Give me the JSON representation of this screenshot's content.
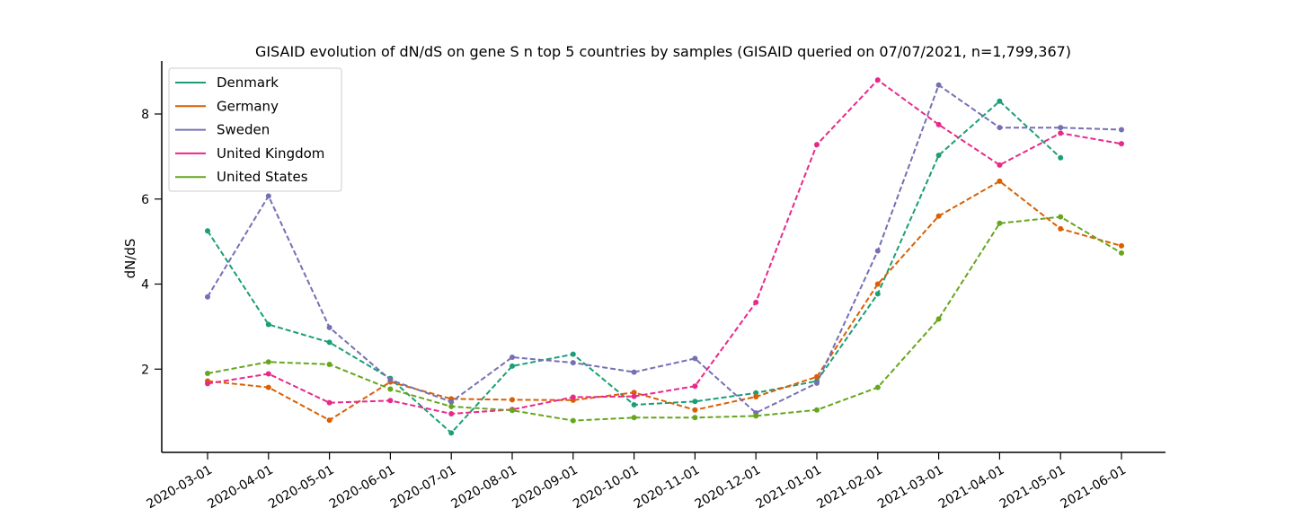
{
  "chart_data": {
    "type": "line",
    "title": "GISAID evolution of dN/dS on gene S n top 5 countries by samples (GISAID queried on 07/07/2021, n=1,799,367)",
    "xlabel": "",
    "ylabel": "dN/dS",
    "ylim": [
      0,
      9.2
    ],
    "yticks": [
      2,
      4,
      6,
      8
    ],
    "grid": false,
    "legend_position": "top-left",
    "categories": [
      "2020-03-01",
      "2020-04-01",
      "2020-05-01",
      "2020-06-01",
      "2020-07-01",
      "2020-08-01",
      "2020-09-01",
      "2020-10-01",
      "2020-11-01",
      "2020-12-01",
      "2021-01-01",
      "2021-02-01",
      "2021-03-01",
      "2021-04-01",
      "2021-05-01",
      "2021-06-01"
    ],
    "series": [
      {
        "name": "Denmark",
        "color": "#1b9e77",
        "values": [
          5.25,
          3.05,
          2.63,
          1.78,
          0.5,
          2.07,
          2.35,
          1.16,
          1.24,
          1.44,
          1.72,
          3.77,
          7.03,
          8.3,
          6.97,
          null
        ]
      },
      {
        "name": "Germany",
        "color": "#d95f02",
        "values": [
          1.72,
          1.57,
          0.8,
          1.7,
          1.3,
          1.28,
          1.27,
          1.45,
          1.04,
          1.35,
          1.82,
          4.0,
          5.6,
          6.42,
          5.3,
          4.9
        ]
      },
      {
        "name": "Sweden",
        "color": "#7570b3",
        "values": [
          3.7,
          6.07,
          2.98,
          1.75,
          1.23,
          2.28,
          2.15,
          1.93,
          2.25,
          0.97,
          1.67,
          4.78,
          8.68,
          7.68,
          7.68,
          7.63
        ]
      },
      {
        "name": "United Kingdom",
        "color": "#e7298a",
        "values": [
          1.66,
          1.89,
          1.21,
          1.26,
          0.95,
          1.05,
          1.34,
          1.36,
          1.6,
          3.57,
          7.28,
          8.8,
          7.75,
          6.8,
          7.55,
          7.3
        ]
      },
      {
        "name": "United States",
        "color": "#66a61e",
        "values": [
          1.9,
          2.17,
          2.11,
          1.53,
          1.12,
          1.03,
          0.79,
          0.86,
          0.86,
          0.9,
          1.04,
          1.57,
          3.18,
          5.43,
          5.58,
          4.73
        ]
      }
    ]
  }
}
